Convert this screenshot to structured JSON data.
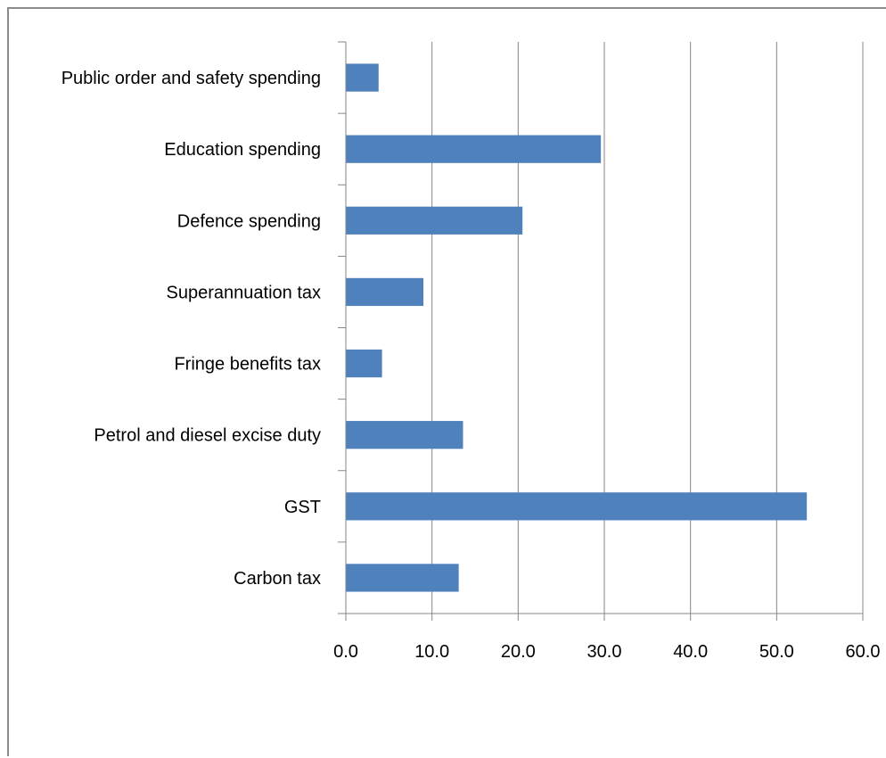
{
  "chart_data": {
    "type": "bar",
    "orientation": "horizontal",
    "categories": [
      "Public order and safety spending",
      "Education spending",
      "Defence spending",
      "Superannuation tax",
      "Fringe benefits tax",
      "Petrol and diesel excise duty",
      "GST",
      "Carbon tax"
    ],
    "values": [
      3.8,
      29.6,
      20.5,
      9.0,
      4.2,
      13.6,
      53.5,
      13.1
    ],
    "x_ticks": [
      "0.0",
      "10.0",
      "20.0",
      "30.0",
      "40.0",
      "50.0",
      "60.0"
    ],
    "xlim": [
      0,
      60
    ],
    "title": "",
    "xlabel": "",
    "ylabel": "",
    "grid": "vertical",
    "legend": "none",
    "bar_color": "#4f81bd",
    "gridline_color": "#868686"
  }
}
